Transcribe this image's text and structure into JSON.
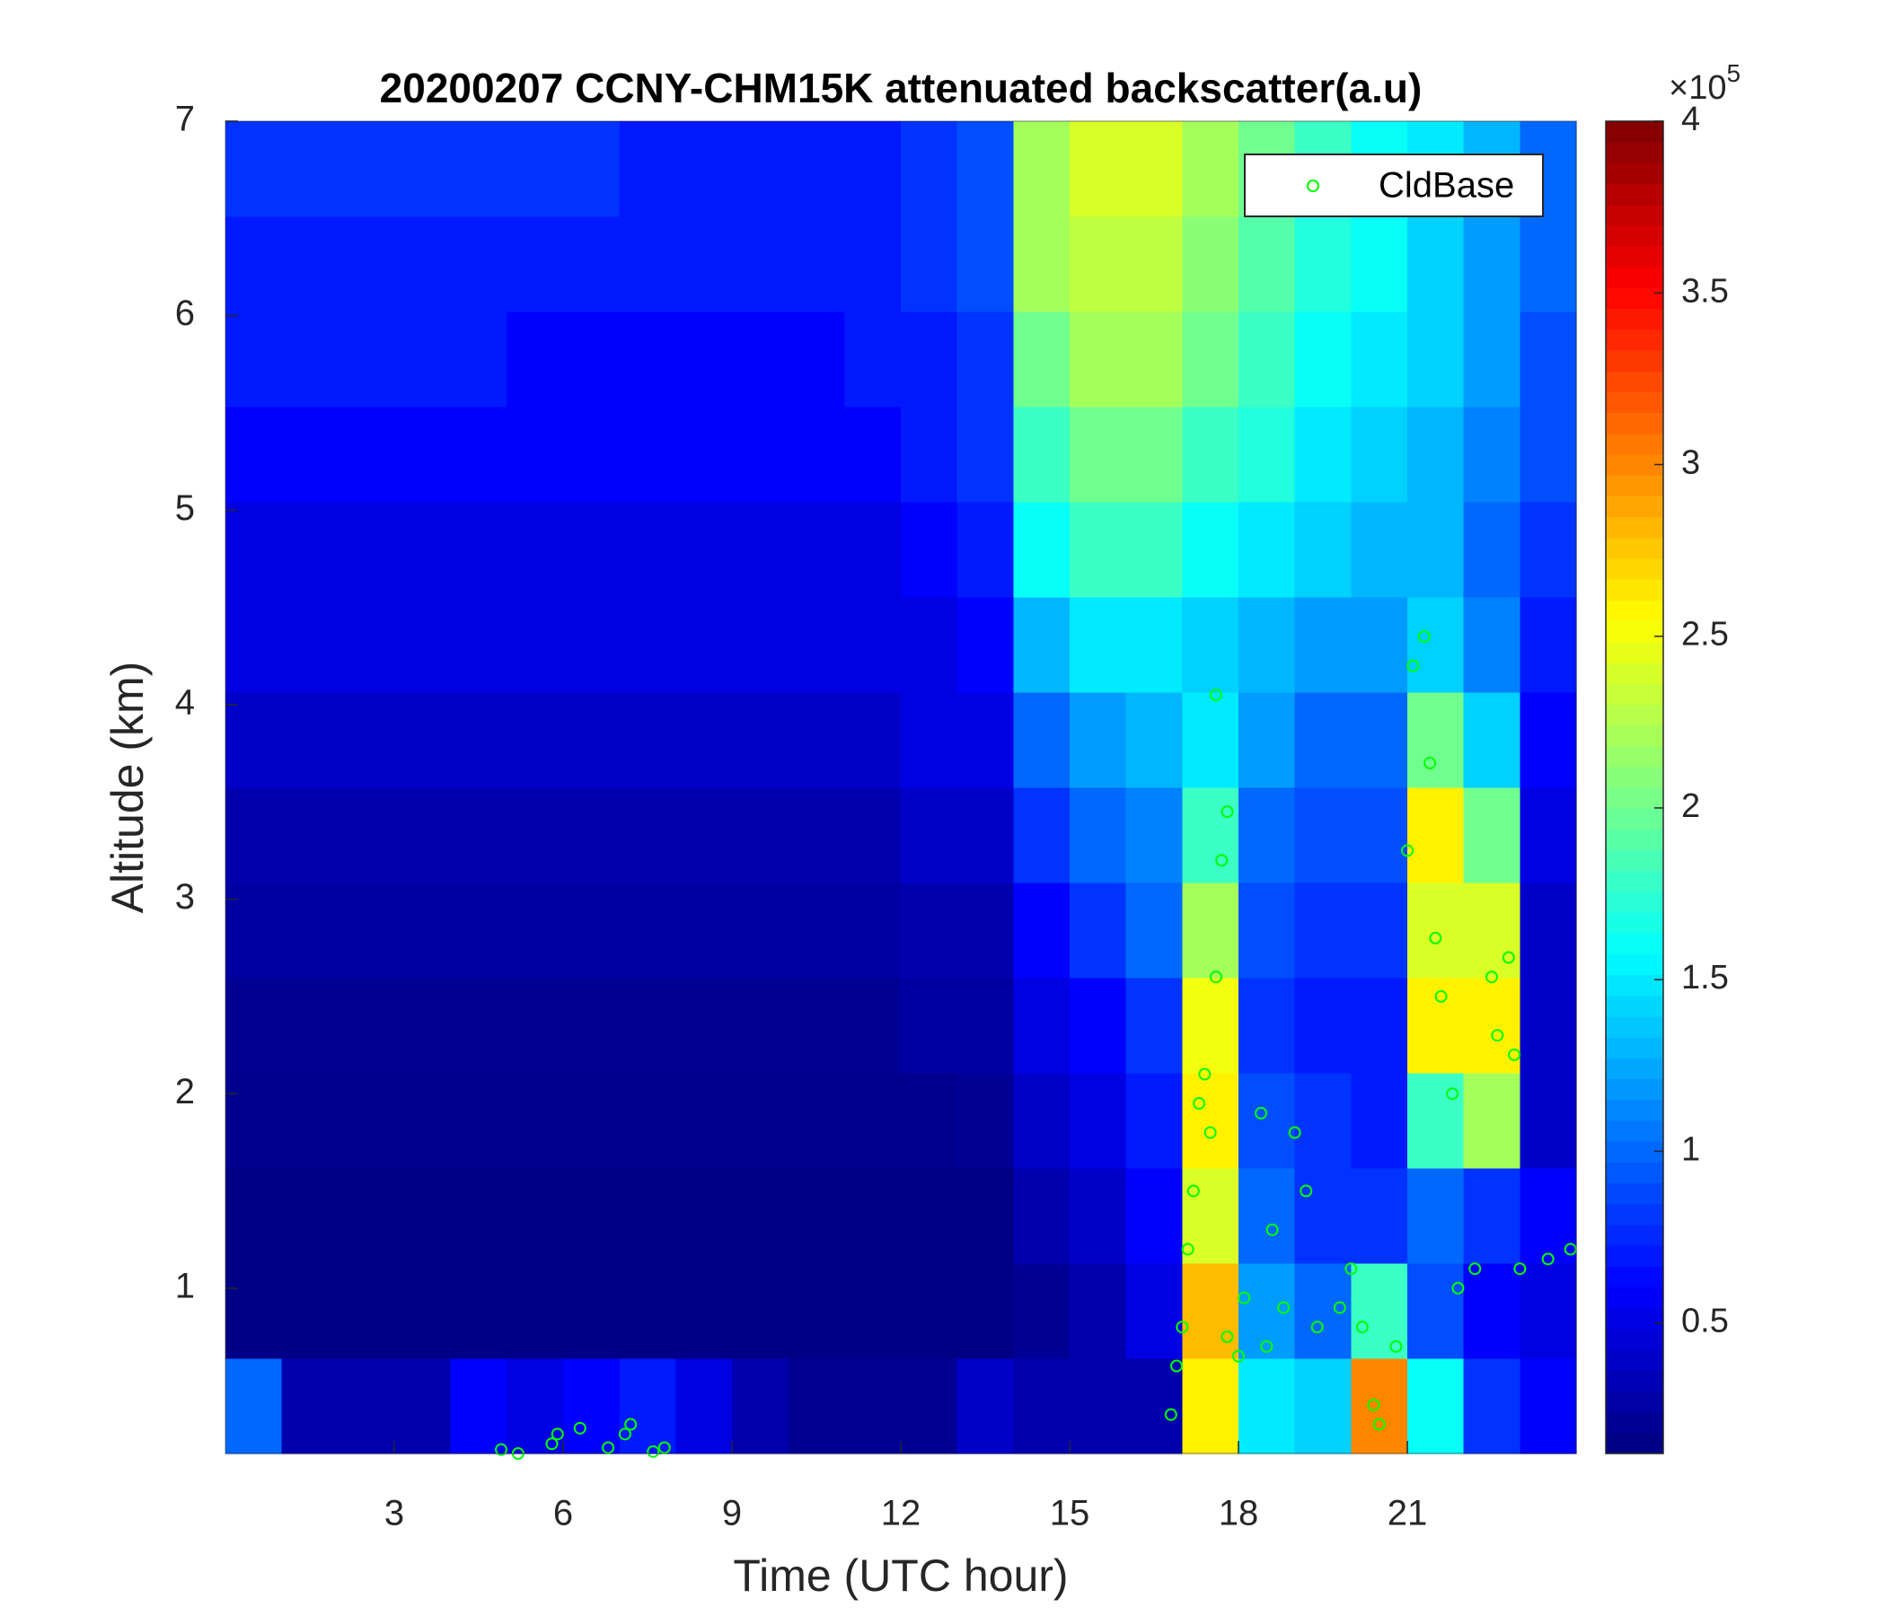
{
  "chart_data": {
    "type": "heatmap",
    "title": "20200207 CCNY-CHM15K attenuated backscatter(a.u)",
    "xlabel": "Time (UTC hour)",
    "ylabel": "Altitude (km)",
    "xlim": [
      0,
      24
    ],
    "xticks": [
      3,
      6,
      9,
      12,
      15,
      18,
      21
    ],
    "ylim": [
      0.15,
      7
    ],
    "yticks": [
      1,
      2,
      3,
      4,
      5,
      6,
      7
    ],
    "colormap": "jet",
    "clim": [
      0.12,
      4
    ],
    "cticks": [
      0.5,
      1,
      1.5,
      2,
      2.5,
      3,
      3.5,
      4
    ],
    "colorbar_multiplier": "×10",
    "colorbar_exponent": "5",
    "legend": "upper right",
    "z": [
      [
        1.0,
        0.3,
        0.3,
        0.3,
        0.6,
        0.5,
        0.6,
        0.7,
        0.5,
        0.3,
        0.2,
        0.2,
        0.2,
        0.4,
        0.3,
        0.3,
        0.3,
        2.6,
        1.5,
        1.4,
        3.0,
        1.6,
        0.8,
        0.6
      ],
      [
        0.15,
        0.15,
        0.15,
        0.15,
        0.15,
        0.15,
        0.15,
        0.15,
        0.15,
        0.15,
        0.15,
        0.15,
        0.15,
        0.15,
        0.2,
        0.3,
        0.5,
        2.8,
        1.2,
        1.0,
        1.8,
        0.9,
        0.6,
        0.5
      ],
      [
        0.15,
        0.15,
        0.15,
        0.15,
        0.15,
        0.15,
        0.15,
        0.15,
        0.15,
        0.15,
        0.15,
        0.15,
        0.15,
        0.15,
        0.3,
        0.4,
        0.6,
        2.4,
        1.0,
        0.8,
        0.8,
        1.0,
        0.8,
        0.6
      ],
      [
        0.18,
        0.18,
        0.18,
        0.18,
        0.18,
        0.18,
        0.18,
        0.18,
        0.18,
        0.18,
        0.18,
        0.18,
        0.18,
        0.2,
        0.4,
        0.5,
        0.7,
        2.6,
        0.9,
        0.8,
        0.7,
        1.8,
        2.2,
        0.4
      ],
      [
        0.2,
        0.2,
        0.2,
        0.2,
        0.2,
        0.2,
        0.2,
        0.2,
        0.2,
        0.2,
        0.2,
        0.2,
        0.25,
        0.25,
        0.5,
        0.6,
        0.8,
        2.5,
        0.8,
        0.7,
        0.7,
        2.6,
        2.6,
        0.4
      ],
      [
        0.25,
        0.25,
        0.25,
        0.25,
        0.25,
        0.25,
        0.25,
        0.25,
        0.25,
        0.25,
        0.25,
        0.25,
        0.3,
        0.3,
        0.6,
        0.8,
        1.0,
        2.2,
        0.9,
        0.8,
        0.8,
        2.4,
        2.4,
        0.4
      ],
      [
        0.3,
        0.3,
        0.3,
        0.3,
        0.3,
        0.3,
        0.3,
        0.3,
        0.3,
        0.3,
        0.3,
        0.3,
        0.4,
        0.4,
        0.8,
        1.0,
        1.1,
        1.8,
        1.0,
        0.9,
        0.9,
        2.6,
        2.0,
        0.5
      ],
      [
        0.4,
        0.4,
        0.4,
        0.4,
        0.4,
        0.4,
        0.4,
        0.4,
        0.4,
        0.4,
        0.4,
        0.4,
        0.5,
        0.5,
        1.0,
        1.2,
        1.3,
        1.5,
        1.2,
        1.0,
        1.0,
        2.0,
        1.4,
        0.6
      ],
      [
        0.5,
        0.5,
        0.5,
        0.5,
        0.5,
        0.5,
        0.5,
        0.5,
        0.5,
        0.5,
        0.5,
        0.5,
        0.5,
        0.6,
        1.3,
        1.5,
        1.5,
        1.4,
        1.3,
        1.2,
        1.2,
        1.4,
        1.1,
        0.7
      ],
      [
        0.5,
        0.5,
        0.5,
        0.5,
        0.5,
        0.5,
        0.5,
        0.5,
        0.5,
        0.5,
        0.5,
        0.5,
        0.6,
        0.7,
        1.6,
        1.8,
        1.8,
        1.6,
        1.5,
        1.4,
        1.3,
        1.3,
        1.0,
        0.8
      ],
      [
        0.6,
        0.6,
        0.6,
        0.6,
        0.6,
        0.6,
        0.6,
        0.6,
        0.6,
        0.6,
        0.6,
        0.6,
        0.7,
        0.8,
        1.8,
        2.0,
        2.0,
        1.8,
        1.7,
        1.5,
        1.4,
        1.3,
        1.1,
        0.9
      ],
      [
        0.7,
        0.7,
        0.7,
        0.7,
        0.7,
        0.6,
        0.6,
        0.6,
        0.6,
        0.6,
        0.6,
        0.7,
        0.7,
        0.8,
        2.0,
        2.2,
        2.2,
        2.0,
        1.8,
        1.6,
        1.5,
        1.4,
        1.2,
        0.9
      ],
      [
        0.7,
        0.7,
        0.7,
        0.7,
        0.7,
        0.7,
        0.7,
        0.7,
        0.7,
        0.7,
        0.7,
        0.7,
        0.8,
        0.9,
        2.2,
        2.3,
        2.3,
        2.1,
        1.9,
        1.7,
        1.6,
        1.4,
        1.2,
        1.0
      ],
      [
        0.8,
        0.8,
        0.8,
        0.8,
        0.8,
        0.8,
        0.8,
        0.7,
        0.7,
        0.7,
        0.7,
        0.7,
        0.8,
        0.9,
        2.2,
        2.4,
        2.4,
        2.2,
        2.0,
        1.8,
        1.6,
        1.5,
        1.3,
        1.0
      ]
    ],
    "overlays": [
      {
        "type": "scatter",
        "name": "CldBase",
        "color": "#00ff00",
        "x": [
          4.9,
          5.2,
          5.8,
          5.9,
          6.3,
          6.8,
          7.1,
          7.2,
          7.6,
          7.8,
          16.8,
          16.9,
          17.0,
          17.1,
          17.2,
          17.3,
          17.4,
          17.5,
          17.6,
          17.7,
          17.6,
          17.8,
          17.8,
          18.0,
          18.1,
          18.4,
          18.5,
          18.6,
          18.8,
          19.0,
          19.2,
          19.4,
          19.8,
          20.0,
          20.2,
          20.4,
          20.5,
          20.8,
          21.0,
          21.1,
          21.3,
          21.4,
          21.5,
          21.6,
          21.8,
          21.9,
          22.2,
          22.5,
          22.6,
          22.8,
          22.9,
          23.0,
          23.5,
          23.9
        ],
        "y": [
          0.17,
          0.15,
          0.2,
          0.25,
          0.28,
          0.18,
          0.25,
          0.3,
          0.16,
          0.18,
          0.35,
          0.6,
          0.8,
          1.2,
          1.5,
          1.95,
          2.1,
          1.8,
          2.6,
          3.2,
          4.05,
          3.45,
          0.75,
          0.65,
          0.95,
          1.9,
          0.7,
          1.3,
          0.9,
          1.8,
          1.5,
          0.8,
          0.9,
          1.1,
          0.8,
          0.4,
          0.3,
          0.7,
          3.25,
          4.2,
          4.35,
          3.7,
          2.8,
          2.5,
          2.0,
          1.0,
          1.1,
          2.6,
          2.3,
          2.7,
          2.2,
          1.1,
          1.15,
          1.2
        ]
      }
    ]
  }
}
